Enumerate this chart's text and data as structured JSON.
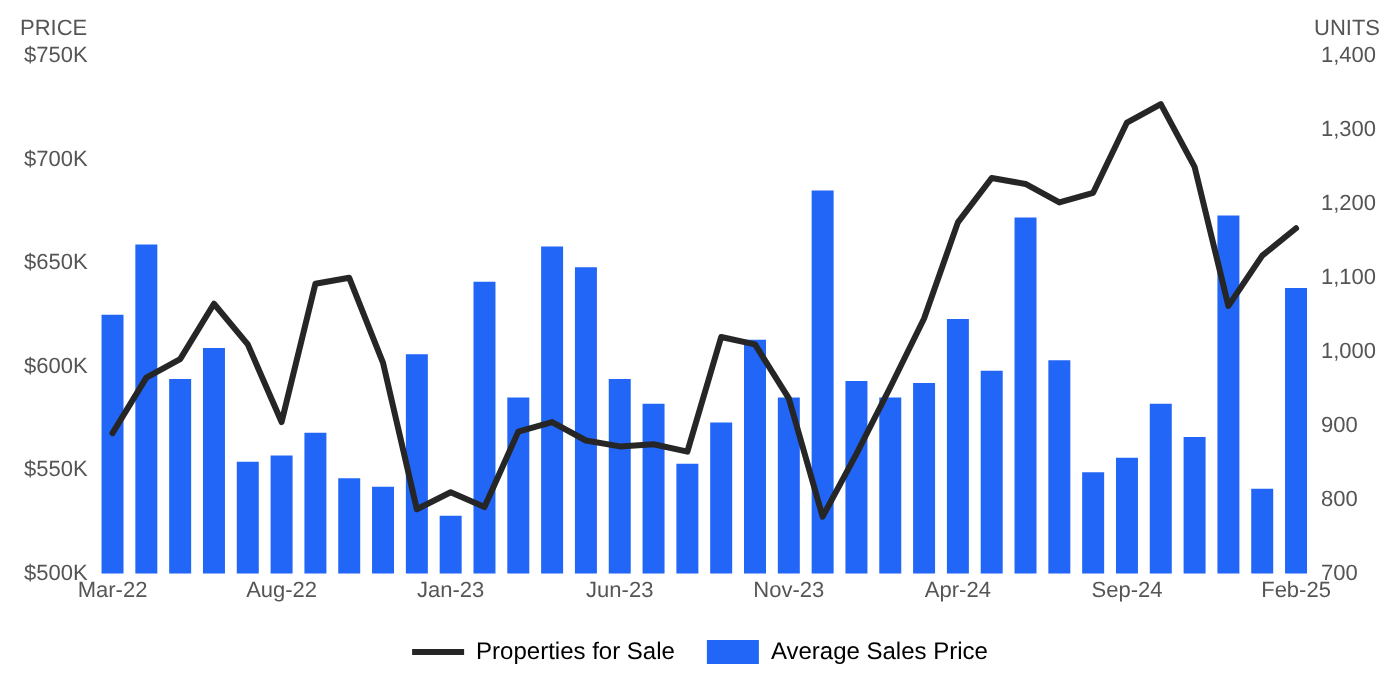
{
  "chart_data": {
    "type": "bar",
    "ylabel": "PRICE",
    "y2label": "UNITS",
    "categories": [
      "Mar-22",
      null,
      null,
      null,
      null,
      "Aug-22",
      null,
      null,
      null,
      null,
      "Jan-23",
      null,
      null,
      null,
      null,
      "Jun-23",
      null,
      null,
      null,
      null,
      "Nov-23",
      null,
      null,
      null,
      null,
      "Apr-24",
      null,
      null,
      null,
      null,
      "Sep-24",
      null,
      null,
      null,
      null,
      "Feb-25"
    ],
    "series": [
      {
        "name": "Properties for Sale",
        "type": "line",
        "axis": "y2",
        "color": "#262626",
        "values": [
          890,
          965,
          990,
          1065,
          1010,
          905,
          1092,
          1100,
          985,
          787,
          810,
          790,
          892,
          905,
          880,
          872,
          875,
          865,
          1020,
          1010,
          937,
          777,
          862,
          952,
          1045,
          1175,
          1235,
          1227,
          1202,
          1215,
          1310,
          1335,
          1250,
          1062,
          1130,
          1167
        ]
      },
      {
        "name": "Average Sales Price",
        "color": "#2166f6",
        "values": [
          625000,
          659000,
          594000,
          609000,
          554000,
          557000,
          568000,
          546000,
          542000,
          606000,
          528000,
          641000,
          585000,
          658000,
          648000,
          594000,
          582000,
          553000,
          573000,
          613000,
          585000,
          685000,
          593000,
          585000,
          592000,
          623000,
          598000,
          672000,
          603000,
          549000,
          556000,
          582000,
          566000,
          673000,
          541000,
          638000
        ]
      }
    ],
    "ylim": [
      500000,
      750000
    ],
    "yticks": [
      {
        "value": 500000,
        "label": "$500K"
      },
      {
        "value": 550000,
        "label": "$550K"
      },
      {
        "value": 600000,
        "label": "$600K"
      },
      {
        "value": 650000,
        "label": "$650K"
      },
      {
        "value": 700000,
        "label": "$700K"
      },
      {
        "value": 750000,
        "label": "$750K"
      }
    ],
    "y2lim": [
      700,
      1400
    ],
    "y2ticks": [
      {
        "value": 700,
        "label": "700"
      },
      {
        "value": 800,
        "label": "800"
      },
      {
        "value": 900,
        "label": "900"
      },
      {
        "value": 1000,
        "label": "1,000"
      },
      {
        "value": 1100,
        "label": "1,100"
      },
      {
        "value": 1200,
        "label": "1,200"
      },
      {
        "value": 1300,
        "label": "1,300"
      },
      {
        "value": 1400,
        "label": "1,400"
      }
    ],
    "grid": false,
    "legend": "bottom",
    "marker": "none",
    "line_style": "solid"
  }
}
